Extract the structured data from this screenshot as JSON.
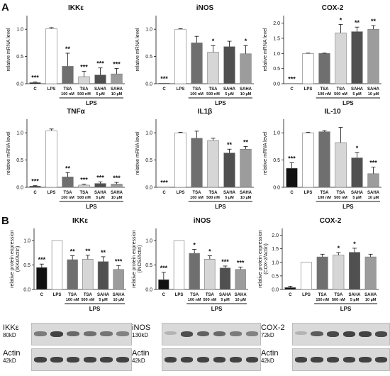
{
  "panel_letters": [
    "A",
    "B"
  ],
  "charts": [
    {
      "id": "A1",
      "type": "bar",
      "title": "IKKε",
      "ylabel": "relative mRNA level",
      "ylim": [
        0,
        1.25
      ],
      "yticks": [
        "0.0",
        "0.5",
        "1.0"
      ],
      "categories": [
        {
          "name": "C",
          "sub": ""
        },
        {
          "name": "LPS",
          "sub": ""
        },
        {
          "name": "TSA",
          "sub": "100 nM"
        },
        {
          "name": "TSA",
          "sub": "500 nM"
        },
        {
          "name": "SAHA",
          "sub": "5 µM"
        },
        {
          "name": "SAHA",
          "sub": "10 µM"
        }
      ],
      "values": [
        0.02,
        1.01,
        0.32,
        0.13,
        0.16,
        0.18
      ],
      "errors": [
        0.01,
        0.02,
        0.24,
        0.1,
        0.13,
        0.1
      ],
      "sig": [
        "***",
        "",
        "**",
        "***",
        "***",
        "***"
      ],
      "group_label": "LPS"
    },
    {
      "id": "A2",
      "type": "bar",
      "title": "iNOS",
      "ylabel": "relative mRNA level",
      "ylim": [
        0,
        1.25
      ],
      "yticks": [
        "0.0",
        "0.5",
        "1.0"
      ],
      "categories": [
        {
          "name": "C",
          "sub": ""
        },
        {
          "name": "LPS",
          "sub": ""
        },
        {
          "name": "TSA",
          "sub": "100 nM"
        },
        {
          "name": "TSA",
          "sub": "500 nM"
        },
        {
          "name": "SAHA",
          "sub": "5 µM"
        },
        {
          "name": "SAHA",
          "sub": "10 µM"
        }
      ],
      "values": [
        0.01,
        1.0,
        0.75,
        0.58,
        0.68,
        0.55
      ],
      "errors": [
        0.0,
        0.01,
        0.12,
        0.12,
        0.1,
        0.15
      ],
      "sig": [
        "***",
        "",
        "",
        "*",
        "",
        "*"
      ],
      "group_label": "LPS"
    },
    {
      "id": "A3",
      "type": "bar",
      "title": "COX-2",
      "ylabel": "relative mRNA level",
      "ylim": [
        0,
        2.25
      ],
      "yticks": [
        "0.0",
        "0.5",
        "1.0",
        "1.5",
        "2.0"
      ],
      "categories": [
        {
          "name": "C",
          "sub": ""
        },
        {
          "name": "LPS",
          "sub": ""
        },
        {
          "name": "TSA",
          "sub": "100 nM"
        },
        {
          "name": "TSA",
          "sub": "500 nM"
        },
        {
          "name": "SAHA",
          "sub": "5 µM"
        },
        {
          "name": "SAHA",
          "sub": "10 µM"
        }
      ],
      "values": [
        0.01,
        1.0,
        1.0,
        1.68,
        1.72,
        1.8
      ],
      "errors": [
        0.0,
        0.01,
        0.01,
        0.28,
        0.15,
        0.12
      ],
      "sig": [
        "***",
        "",
        "",
        "*",
        "**",
        "**"
      ],
      "group_label": "LPS"
    },
    {
      "id": "A4",
      "type": "bar",
      "title": "TNFα",
      "ylabel": "relative mRNA level",
      "ylim": [
        0,
        1.25
      ],
      "yticks": [
        "0.0",
        "0.5",
        "1.0"
      ],
      "categories": [
        {
          "name": "C",
          "sub": ""
        },
        {
          "name": "LPS",
          "sub": ""
        },
        {
          "name": "TSA",
          "sub": "100 nM"
        },
        {
          "name": "TSA",
          "sub": "500 nM"
        },
        {
          "name": "SAHA",
          "sub": "5 µM"
        },
        {
          "name": "SAHA",
          "sub": "10 µM"
        }
      ],
      "values": [
        0.02,
        1.04,
        0.19,
        0.04,
        0.07,
        0.06
      ],
      "errors": [
        0.01,
        0.03,
        0.08,
        0.02,
        0.03,
        0.03
      ],
      "sig": [
        "***",
        "",
        "**",
        "***",
        "***",
        "***"
      ],
      "group_label": "LPS"
    },
    {
      "id": "A5",
      "type": "bar",
      "title": "IL1β",
      "ylabel": "relative mRNA level",
      "ylim": [
        0,
        1.25
      ],
      "yticks": [
        "0.0",
        "0.5",
        "1.0"
      ],
      "categories": [
        {
          "name": "C",
          "sub": ""
        },
        {
          "name": "LPS",
          "sub": ""
        },
        {
          "name": "TSA",
          "sub": "100 nM"
        },
        {
          "name": "TSA",
          "sub": "500 nM"
        },
        {
          "name": "SAHA",
          "sub": "5 µM"
        },
        {
          "name": "SAHA",
          "sub": "10 µM"
        }
      ],
      "values": [
        0.005,
        1.0,
        0.9,
        0.86,
        0.63,
        0.7
      ],
      "errors": [
        0.0,
        0.01,
        0.13,
        0.04,
        0.07,
        0.05
      ],
      "sig": [
        "***",
        "",
        "",
        "",
        "**",
        "**"
      ],
      "group_label": "LPS"
    },
    {
      "id": "A6",
      "type": "bar",
      "title": "IL-10",
      "ylabel": "relative mRNA level",
      "ylim": [
        0,
        1.25
      ],
      "yticks": [
        "0.0",
        "0.5",
        "1.0"
      ],
      "categories": [
        {
          "name": "C",
          "sub": ""
        },
        {
          "name": "LPS",
          "sub": ""
        },
        {
          "name": "TSA",
          "sub": "100 nM"
        },
        {
          "name": "TSA",
          "sub": "500 nM"
        },
        {
          "name": "SAHA",
          "sub": "5 µM"
        },
        {
          "name": "SAHA",
          "sub": "10 µM"
        }
      ],
      "values": [
        0.35,
        1.0,
        1.02,
        0.82,
        0.54,
        0.25
      ],
      "errors": [
        0.1,
        0.01,
        0.02,
        0.28,
        0.1,
        0.12
      ],
      "sig": [
        "***",
        "",
        "",
        "",
        "*",
        "***"
      ],
      "group_label": "LPS"
    },
    {
      "id": "B1",
      "type": "bar",
      "title": "IKKε",
      "ylabel": "relative protein expression\n(IKKε/Actin)",
      "ylim": [
        0,
        1.25
      ],
      "yticks": [
        "0.0",
        "0.5",
        "1.0"
      ],
      "categories": [
        {
          "name": "C",
          "sub": ""
        },
        {
          "name": "LPS",
          "sub": ""
        },
        {
          "name": "TSA",
          "sub": "100 nM"
        },
        {
          "name": "TSA",
          "sub": "500 nM"
        },
        {
          "name": "SAHA",
          "sub": "5 µM"
        },
        {
          "name": "SAHA",
          "sub": "10 µM"
        }
      ],
      "values": [
        0.45,
        1.0,
        0.61,
        0.62,
        0.57,
        0.41
      ],
      "errors": [
        0.07,
        0.0,
        0.08,
        0.08,
        0.1,
        0.08
      ],
      "sig": [
        "***",
        "",
        "**",
        "**",
        "**",
        "***"
      ],
      "group_label": "LPS"
    },
    {
      "id": "B2",
      "type": "bar",
      "title": "iNOS",
      "ylabel": "relative protein expression\n(iNOS/Actin)",
      "ylim": [
        0,
        1.25
      ],
      "yticks": [
        "0.0",
        "0.5",
        "1.0"
      ],
      "categories": [
        {
          "name": "C",
          "sub": ""
        },
        {
          "name": "LPS",
          "sub": ""
        },
        {
          "name": "TSA",
          "sub": "100 nM"
        },
        {
          "name": "TSA",
          "sub": "500 nM"
        },
        {
          "name": "SAHA",
          "sub": "5 µM"
        },
        {
          "name": "SAHA",
          "sub": "10 µM"
        }
      ],
      "values": [
        0.2,
        1.0,
        0.74,
        0.62,
        0.44,
        0.41
      ],
      "errors": [
        0.15,
        0.0,
        0.08,
        0.07,
        0.04,
        0.05
      ],
      "sig": [
        "***",
        "",
        "*",
        "*",
        "***",
        "***"
      ],
      "group_label": "LPS"
    },
    {
      "id": "B3",
      "type": "bar",
      "title": "COX-2",
      "ylabel": "relative protein expression\n(COX-2/Actin)",
      "ylim": [
        0,
        2.25
      ],
      "yticks": [
        "0.0",
        "0.5",
        "1.0",
        "1.5",
        "2.0"
      ],
      "categories": [
        {
          "name": "C",
          "sub": ""
        },
        {
          "name": "LPS",
          "sub": ""
        },
        {
          "name": "TSA",
          "sub": "100 nM"
        },
        {
          "name": "TSA",
          "sub": "500 nM"
        },
        {
          "name": "SAHA",
          "sub": "5 µM"
        },
        {
          "name": "SAHA",
          "sub": "10 µM"
        }
      ],
      "values": [
        0.07,
        1.0,
        1.2,
        1.27,
        1.37,
        1.2
      ],
      "errors": [
        0.05,
        0.0,
        0.1,
        0.09,
        0.15,
        0.1
      ],
      "sig": [
        "",
        "",
        "",
        "*",
        "*",
        ""
      ],
      "group_label": "LPS"
    }
  ],
  "colors": {
    "bars": [
      "#111111",
      "#ffffff",
      "#6f6f6f",
      "#d6d6d6",
      "#505050",
      "#9c9c9c"
    ],
    "edge": "#777777",
    "ink": "#111111"
  },
  "blots": [
    {
      "id": "blot-ikk",
      "top": {
        "name": "IKKε",
        "kd": "80kD",
        "intensity": [
          0.55,
          1.0,
          0.7,
          0.65,
          0.6,
          0.5
        ]
      },
      "bottom": {
        "name": "Actin",
        "kd": "42kD",
        "intensity": [
          1,
          1,
          1,
          1,
          1,
          1
        ]
      }
    },
    {
      "id": "blot-inos",
      "top": {
        "name": "iNOS",
        "kd": "130kD",
        "intensity": [
          0.1,
          0.9,
          0.75,
          0.7,
          0.55,
          0.5
        ]
      },
      "bottom": {
        "name": "Actin",
        "kd": "42kD",
        "intensity": [
          1,
          1,
          1,
          1,
          1,
          1
        ]
      }
    },
    {
      "id": "blot-cox",
      "top": {
        "name": "COX-2",
        "kd": "72kD",
        "intensity": [
          0.1,
          0.8,
          0.95,
          1.0,
          1.0,
          0.95
        ]
      },
      "bottom": {
        "name": "Actin",
        "kd": "42kD",
        "intensity": [
          1,
          1,
          1,
          1,
          1,
          1
        ]
      }
    }
  ]
}
